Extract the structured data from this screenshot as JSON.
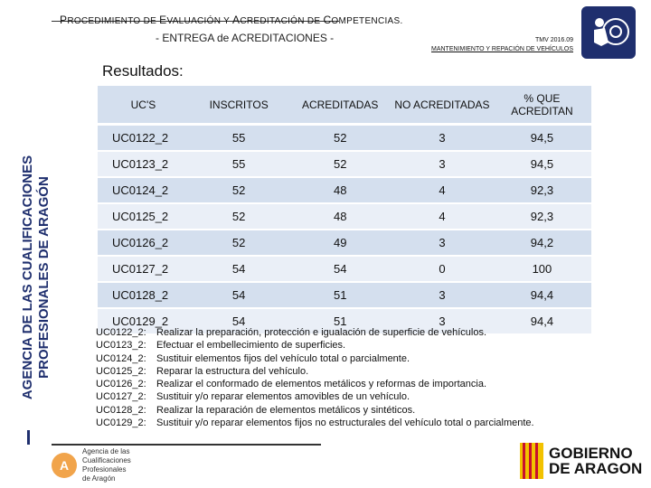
{
  "sidebar": {
    "line1": "AGENCIA DE LAS CUALIFICACIONES",
    "line2": "PROFESIONALES DE ARAGÓN"
  },
  "header": {
    "title_parts": [
      {
        "cap": "P",
        "rest": "ROCEDIMIENTO DE "
      },
      {
        "cap": "E",
        "rest": "VALUACIÓN Y "
      },
      {
        "cap": "A",
        "rest": "CREDITACIÓN DE "
      },
      {
        "cap": "C",
        "rest": "OMPETENCIAS."
      }
    ],
    "subtitle": "- ENTREGA de ACREDITACIONES -",
    "code": "TMV 2016.09",
    "code_desc": "MANTENIMIENTO Y REPACIÓN DE VEHÍCULOS"
  },
  "results_label": "Resultados:",
  "table": {
    "headers": [
      "UC'S",
      "INSCRITOS",
      "ACREDITADAS",
      "NO ACREDITADAS",
      "% QUE ACREDITAN"
    ],
    "rows": [
      [
        "UC0122_2",
        "55",
        "52",
        "3",
        "94,5"
      ],
      [
        "UC0123_2",
        "55",
        "52",
        "3",
        "94,5"
      ],
      [
        "UC0124_2",
        "52",
        "48",
        "4",
        "92,3"
      ],
      [
        "UC0125_2",
        "52",
        "48",
        "4",
        "92,3"
      ],
      [
        "UC0126_2",
        "52",
        "49",
        "3",
        "94,2"
      ],
      [
        "UC0127_2",
        "54",
        "54",
        "0",
        "100"
      ],
      [
        "UC0128_2",
        "54",
        "51",
        "3",
        "94,4"
      ],
      [
        "UC0129_2",
        "54",
        "51",
        "3",
        "94,4"
      ]
    ]
  },
  "legend": [
    {
      "code": "UC0122_2:",
      "desc": "Realizar la preparación, protección e igualación de superficie de vehículos."
    },
    {
      "code": "UC0123_2:",
      "desc": "Efectuar el embellecimiento de superficies."
    },
    {
      "code": "UC0124_2:",
      "desc": "Sustituir elementos fijos del vehículo total o parcialmente."
    },
    {
      "code": "UC0125_2:",
      "desc": "Reparar la estructura del vehículo."
    },
    {
      "code": "UC0126_2:",
      "desc": "Realizar el conformado de elementos metálicos y reformas de importancia."
    },
    {
      "code": "UC0127_2:",
      "desc": "Sustituir y/o reparar elementos amovibles de un vehículo."
    },
    {
      "code": "UC0128_2:",
      "desc": "Realizar la reparación de elementos metálicos y sintéticos."
    },
    {
      "code": "UC0129_2:",
      "desc": "Sustituir y/o reparar elementos fijos no estructurales del vehículo total o parcialmente."
    }
  ],
  "agency_logo": {
    "badge": "A",
    "lines": [
      "Agencia de las",
      "Cualificaciones",
      "Profesionales",
      "de Aragón"
    ]
  },
  "gov_logo": {
    "line1": "GOBIERNO",
    "line2": "DE ARAGON"
  },
  "colors": {
    "navy": "#1f2f6e",
    "row_dark": "#d4dfee",
    "row_light": "#eaeff7",
    "accent_orange": "#f1a44b",
    "gov_red": "#c8102e",
    "gov_yellow": "#f2c200"
  }
}
